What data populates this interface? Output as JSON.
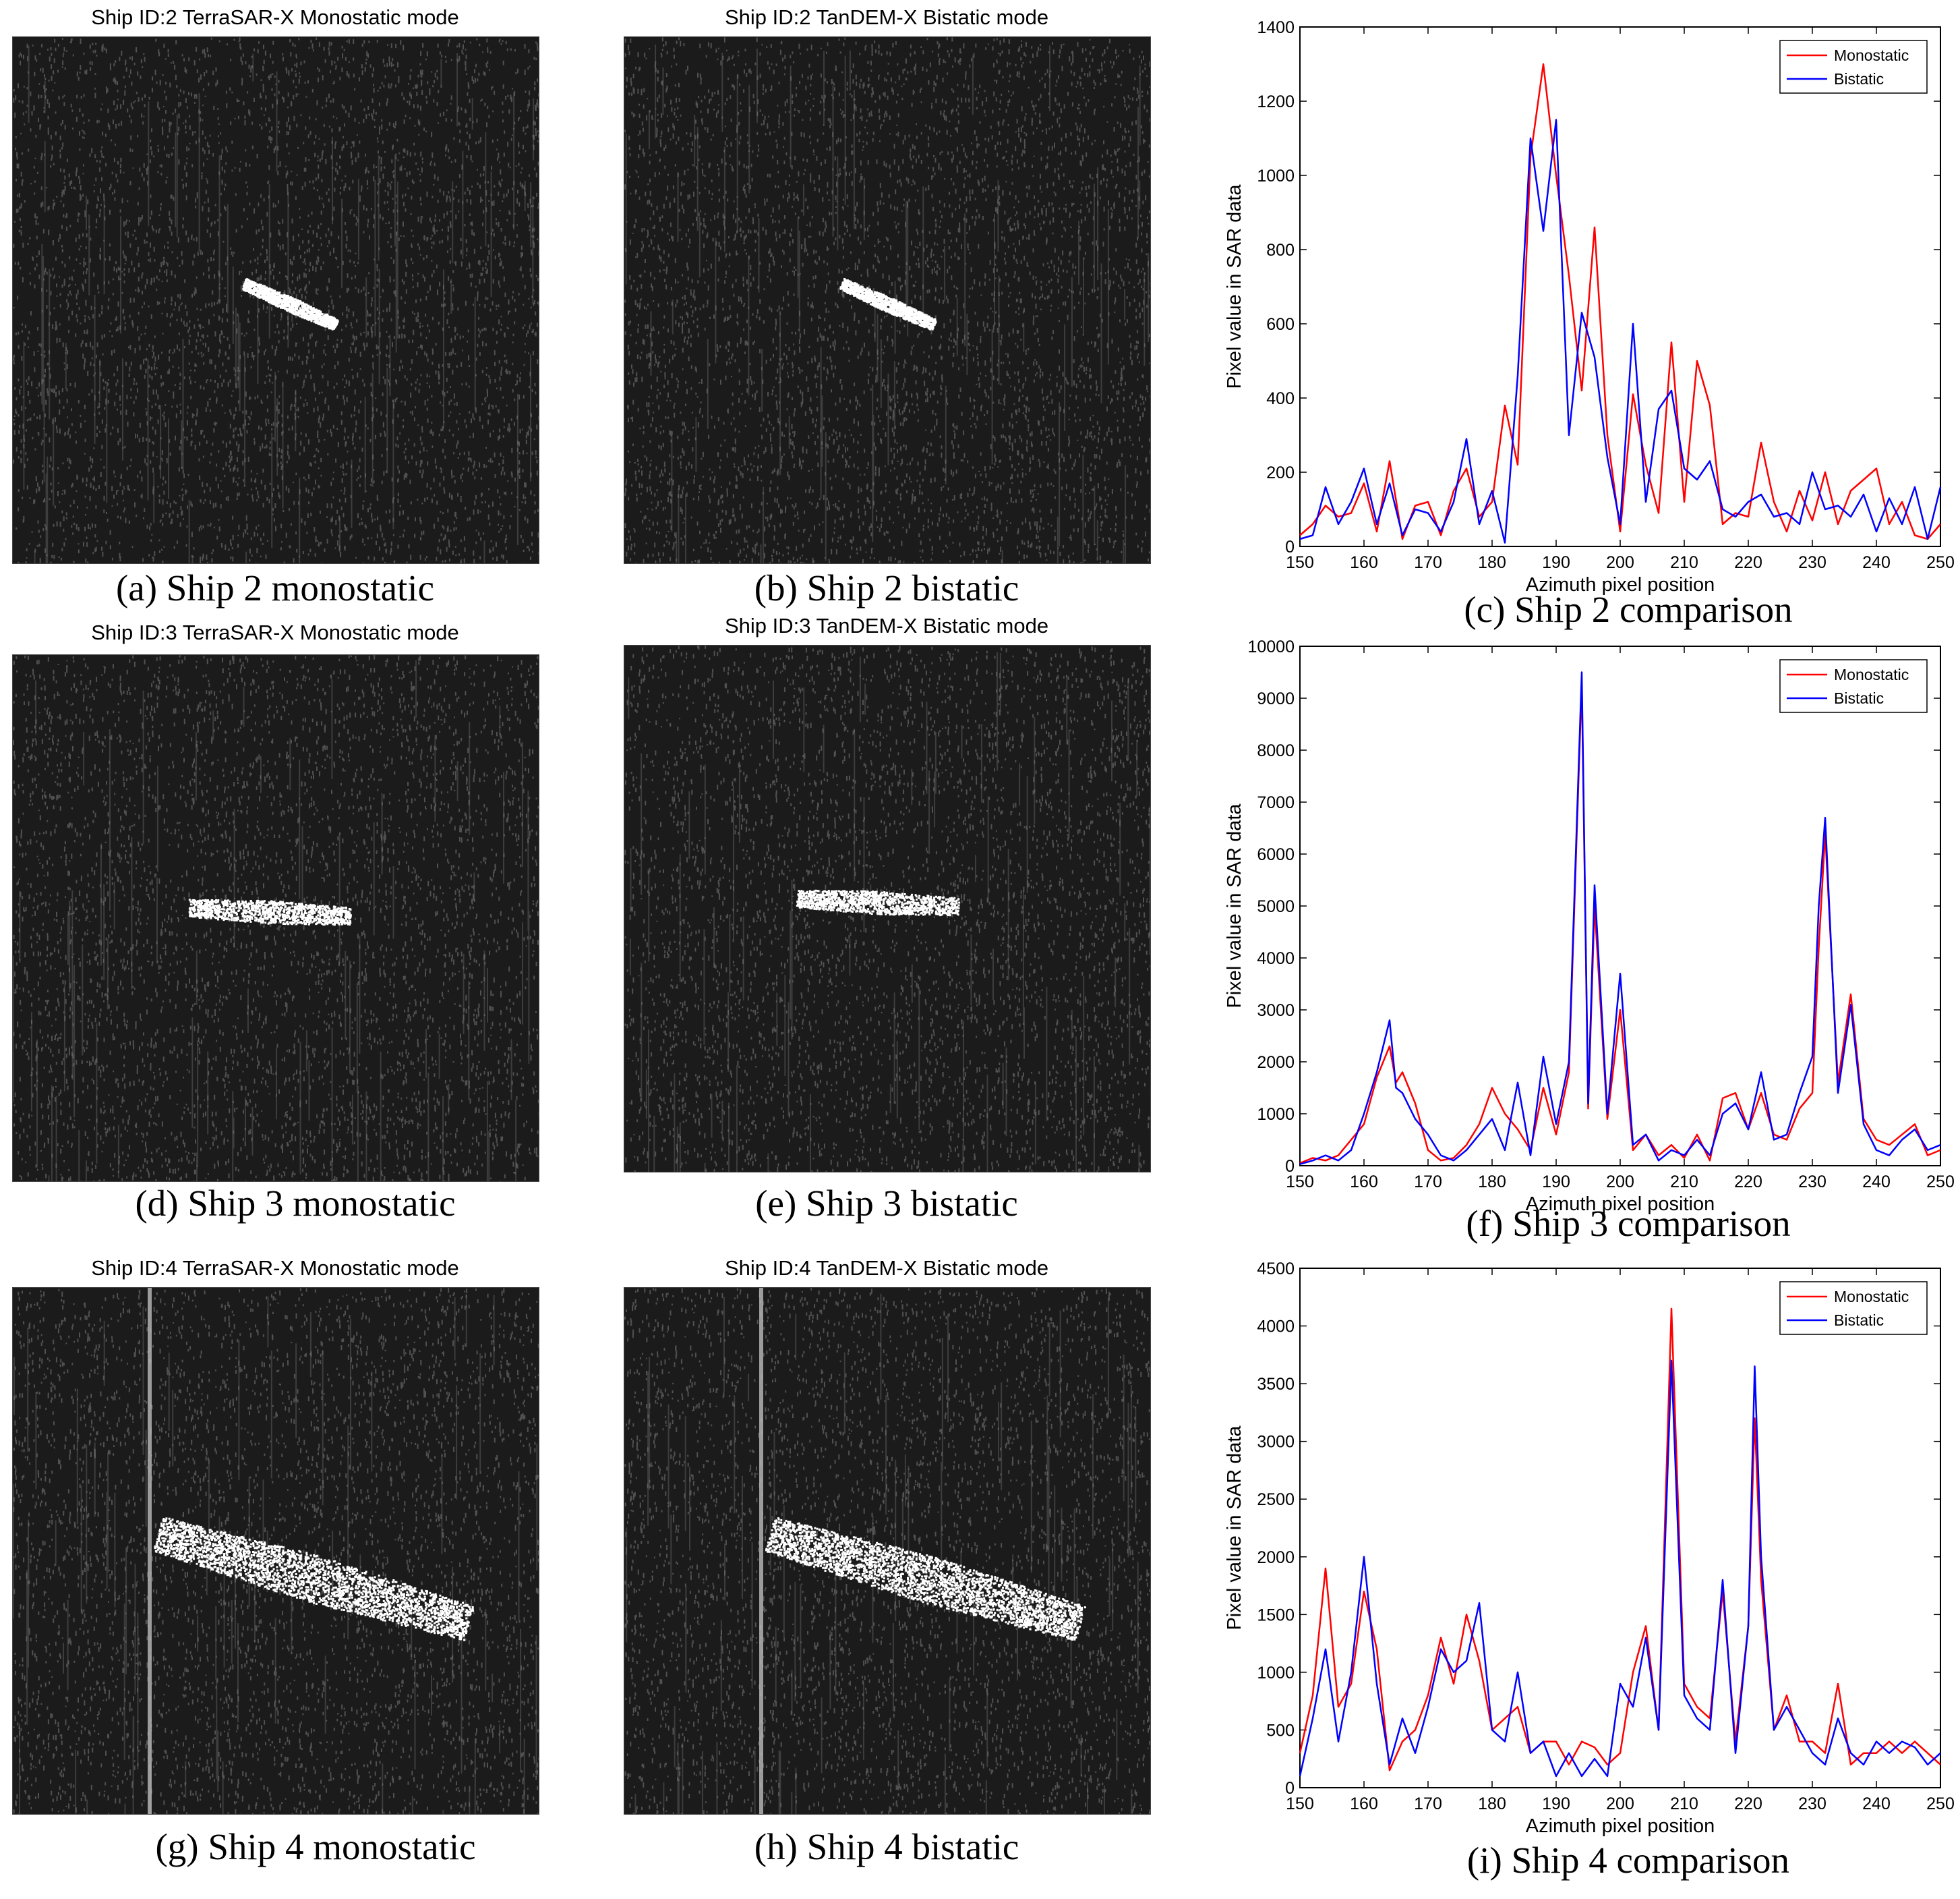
{
  "panels": [
    {
      "id": "a",
      "title": "Ship ID:2 TerraSAR-X Monostatic mode",
      "caption": "(a) Ship 2 monostatic"
    },
    {
      "id": "b",
      "title": "Ship ID:2 TanDEM-X Bistatic mode",
      "caption": "(b) Ship 2 bistatic"
    },
    {
      "id": "c",
      "caption": "(c) Ship 2  comparison"
    },
    {
      "id": "d",
      "title": "Ship ID:3 TerraSAR-X Monostatic mode",
      "caption": "(d) Ship 3 monostatic"
    },
    {
      "id": "e",
      "title": "Ship ID:3 TanDEM-X Bistatic mode",
      "caption": "(e) Ship 3 bistatic"
    },
    {
      "id": "f",
      "caption": "(f) Ship 3  comparison"
    },
    {
      "id": "g",
      "title": "Ship ID:4 TerraSAR-X Monostatic mode",
      "caption": "(g) Ship 4 monostatic"
    },
    {
      "id": "h",
      "title": "Ship ID:4 TanDEM-X Bistatic mode",
      "caption": "(h) Ship 4 bistatic"
    },
    {
      "id": "i",
      "caption": "(i) Ship 4  comparison"
    }
  ],
  "colors": {
    "monostatic": "#ff0000",
    "bistatic": "#0000ff"
  },
  "chart_data": [
    {
      "type": "line",
      "xlabel": "Azimuth pixel position",
      "ylabel": "Pixel value in SAR data",
      "xlim": [
        150,
        250
      ],
      "ylim": [
        0,
        1400
      ],
      "xticks": [
        150,
        160,
        170,
        180,
        190,
        200,
        210,
        220,
        230,
        240,
        250
      ],
      "yticks": [
        0,
        200,
        400,
        600,
        800,
        1000,
        1200,
        1400
      ],
      "legend": "top-right",
      "x": [
        150,
        152,
        154,
        156,
        158,
        160,
        162,
        164,
        166,
        168,
        170,
        172,
        174,
        176,
        178,
        180,
        182,
        184,
        186,
        188,
        190,
        192,
        194,
        196,
        198,
        200,
        202,
        204,
        206,
        208,
        210,
        212,
        214,
        216,
        218,
        220,
        222,
        224,
        226,
        228,
        230,
        232,
        234,
        236,
        238,
        240,
        242,
        244,
        246,
        248,
        250
      ],
      "series": [
        {
          "name": "Monostatic",
          "color": "monostatic",
          "values": [
            30,
            60,
            110,
            80,
            90,
            170,
            40,
            230,
            20,
            110,
            120,
            30,
            150,
            210,
            80,
            120,
            380,
            220,
            1050,
            1300,
            1000,
            730,
            420,
            860,
            300,
            40,
            410,
            220,
            90,
            550,
            120,
            500,
            380,
            60,
            90,
            80,
            280,
            120,
            40,
            150,
            70,
            200,
            60,
            150,
            180,
            210,
            60,
            120,
            30,
            20,
            60
          ]
        },
        {
          "name": "Bistatic",
          "color": "bistatic",
          "values": [
            20,
            30,
            160,
            60,
            120,
            210,
            60,
            170,
            30,
            100,
            90,
            40,
            120,
            290,
            60,
            150,
            10,
            460,
            1100,
            850,
            1150,
            300,
            630,
            510,
            240,
            60,
            600,
            120,
            370,
            420,
            210,
            180,
            230,
            100,
            80,
            120,
            140,
            80,
            90,
            60,
            200,
            100,
            110,
            80,
            140,
            40,
            130,
            60,
            160,
            20,
            160
          ]
        }
      ]
    },
    {
      "type": "line",
      "xlabel": "Azimuth pixel position",
      "ylabel": "Pixel value in SAR data",
      "xlim": [
        150,
        250
      ],
      "ylim": [
        0,
        10000
      ],
      "xticks": [
        150,
        160,
        170,
        180,
        190,
        200,
        210,
        220,
        230,
        240,
        250
      ],
      "yticks": [
        0,
        1000,
        2000,
        3000,
        4000,
        5000,
        6000,
        7000,
        8000,
        9000,
        10000
      ],
      "legend": "top-right",
      "x": [
        150,
        152,
        154,
        156,
        158,
        160,
        162,
        164,
        165,
        166,
        168,
        170,
        172,
        174,
        176,
        178,
        180,
        182,
        184,
        186,
        188,
        190,
        192,
        194,
        195,
        196,
        198,
        200,
        202,
        204,
        206,
        208,
        210,
        212,
        214,
        216,
        218,
        220,
        222,
        224,
        226,
        228,
        230,
        231,
        232,
        234,
        236,
        238,
        240,
        242,
        244,
        246,
        248,
        250
      ],
      "series": [
        {
          "name": "Monostatic",
          "color": "monostatic",
          "values": [
            50,
            150,
            100,
            200,
            500,
            800,
            1700,
            2300,
            1600,
            1800,
            1200,
            300,
            100,
            150,
            400,
            800,
            1500,
            1000,
            700,
            300,
            1500,
            600,
            1800,
            9300,
            1100,
            5000,
            900,
            3000,
            300,
            600,
            200,
            400,
            150,
            600,
            100,
            1300,
            1400,
            700,
            1400,
            600,
            500,
            1100,
            1400,
            4200,
            6400,
            1600,
            3300,
            900,
            500,
            400,
            600,
            800,
            200,
            300
          ]
        },
        {
          "name": "Bistatic",
          "color": "bistatic",
          "values": [
            30,
            100,
            200,
            100,
            300,
            1000,
            1800,
            2800,
            1500,
            1400,
            900,
            600,
            200,
            100,
            300,
            600,
            900,
            300,
            1600,
            200,
            2100,
            800,
            2000,
            9500,
            1200,
            5400,
            1000,
            3700,
            400,
            600,
            100,
            300,
            200,
            500,
            200,
            1000,
            1200,
            700,
            1800,
            500,
            600,
            1400,
            2100,
            5000,
            6700,
            1400,
            3100,
            800,
            300,
            200,
            500,
            700,
            300,
            400
          ]
        }
      ]
    },
    {
      "type": "line",
      "xlabel": "Azimuth pixel position",
      "ylabel": "Pixel value in SAR data",
      "xlim": [
        150,
        250
      ],
      "ylim": [
        0,
        4500
      ],
      "xticks": [
        150,
        160,
        170,
        180,
        190,
        200,
        210,
        220,
        230,
        240,
        250
      ],
      "yticks": [
        0,
        500,
        1000,
        1500,
        2000,
        2500,
        3000,
        3500,
        4000,
        4500
      ],
      "legend": "top-right",
      "x": [
        150,
        152,
        154,
        156,
        158,
        160,
        162,
        164,
        166,
        168,
        170,
        172,
        174,
        176,
        178,
        180,
        182,
        184,
        186,
        188,
        190,
        192,
        194,
        196,
        198,
        200,
        202,
        204,
        206,
        208,
        210,
        212,
        214,
        216,
        218,
        220,
        221,
        222,
        224,
        226,
        228,
        230,
        232,
        234,
        236,
        238,
        240,
        242,
        244,
        246,
        248,
        250
      ],
      "series": [
        {
          "name": "Monostatic",
          "color": "monostatic",
          "values": [
            300,
            800,
            1900,
            700,
            900,
            1700,
            1200,
            150,
            400,
            500,
            800,
            1300,
            900,
            1500,
            1100,
            500,
            600,
            700,
            300,
            400,
            400,
            200,
            400,
            350,
            200,
            300,
            1000,
            1400,
            500,
            4150,
            900,
            700,
            600,
            1700,
            400,
            1400,
            3200,
            1800,
            500,
            800,
            400,
            400,
            300,
            900,
            200,
            300,
            300,
            400,
            300,
            400,
            300,
            200
          ]
        },
        {
          "name": "Bistatic",
          "color": "bistatic",
          "values": [
            100,
            600,
            1200,
            400,
            1000,
            2000,
            900,
            200,
            600,
            300,
            700,
            1200,
            1000,
            1100,
            1600,
            500,
            400,
            1000,
            300,
            400,
            100,
            300,
            100,
            250,
            100,
            900,
            700,
            1300,
            500,
            3700,
            800,
            600,
            500,
            1800,
            300,
            1400,
            3650,
            2000,
            500,
            700,
            500,
            300,
            200,
            600,
            300,
            200,
            400,
            300,
            400,
            350,
            200,
            300
          ]
        }
      ]
    }
  ]
}
